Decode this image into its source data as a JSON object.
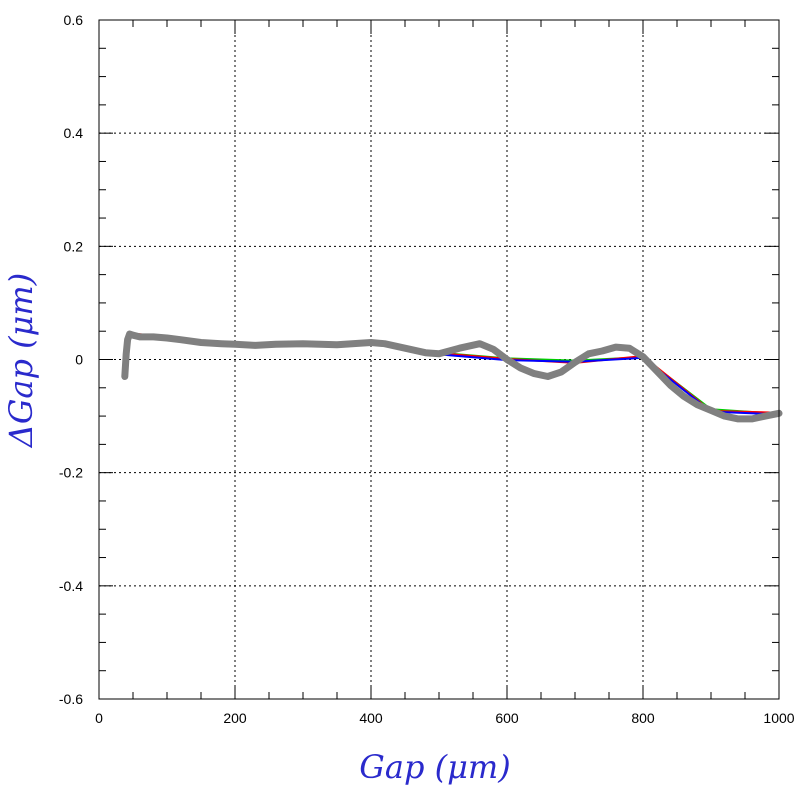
{
  "chart_data": {
    "type": "line",
    "title": "",
    "xlabel": "Gap  (μm)",
    "ylabel": "ΔGap  (μm)",
    "xlim": [
      0,
      1000
    ],
    "ylim": [
      -0.6,
      0.6
    ],
    "grid": true,
    "x_ticks": [
      0,
      200,
      400,
      600,
      800,
      1000
    ],
    "x_tick_labels": [
      "0",
      "200",
      "400",
      "600",
      "800",
      "1000"
    ],
    "y_ticks": [
      -0.6,
      -0.4,
      -0.2,
      0,
      0.2,
      0.4,
      0.6
    ],
    "y_tick_labels": [
      "-0.6",
      "-0.4",
      "-0.2",
      "0",
      "0.2",
      "0.4",
      "0.6"
    ],
    "series": [
      {
        "color": "#808080",
        "x": [
          38,
          40,
          42,
          45,
          50,
          60,
          80,
          100,
          120,
          150,
          180,
          200,
          230,
          260,
          300,
          350,
          400,
          420,
          450,
          480,
          500,
          530,
          560,
          580,
          600,
          620,
          640,
          660,
          680,
          700,
          720,
          740,
          760,
          780,
          800,
          820,
          840,
          860,
          880,
          900,
          920,
          940,
          960,
          980,
          1000
        ],
        "y": [
          -0.03,
          0.01,
          0.035,
          0.045,
          0.043,
          0.04,
          0.04,
          0.038,
          0.035,
          0.03,
          0.028,
          0.027,
          0.025,
          0.027,
          0.028,
          0.026,
          0.03,
          0.028,
          0.02,
          0.012,
          0.01,
          0.02,
          0.028,
          0.018,
          0.0,
          -0.015,
          -0.025,
          -0.03,
          -0.022,
          -0.005,
          0.01,
          0.015,
          0.022,
          0.02,
          0.005,
          -0.02,
          -0.045,
          -0.065,
          -0.08,
          -0.09,
          -0.1,
          -0.105,
          -0.105,
          -0.1,
          -0.095
        ]
      },
      {
        "color": "#00cc00",
        "x": [
          50,
          120,
          200,
          300,
          400,
          500,
          600,
          700,
          800,
          900,
          1000
        ],
        "y": [
          0.04,
          0.033,
          0.026,
          0.03,
          0.027,
          0.012,
          0.002,
          -0.002,
          0.004,
          -0.088,
          -0.096
        ]
      },
      {
        "color": "#ff0000",
        "x": [
          50,
          120,
          200,
          300,
          400,
          500,
          600,
          700,
          800,
          900,
          1000
        ],
        "y": [
          0.046,
          0.037,
          0.028,
          0.029,
          0.031,
          0.011,
          0.001,
          -0.006,
          0.006,
          -0.091,
          -0.094
        ]
      },
      {
        "color": "#0000ff",
        "x": [
          50,
          120,
          200,
          300,
          400,
          500,
          600,
          700,
          800,
          900,
          1000
        ],
        "y": [
          0.042,
          0.034,
          0.027,
          0.027,
          0.029,
          0.009,
          -0.001,
          -0.004,
          0.003,
          -0.092,
          -0.097
        ]
      }
    ]
  }
}
